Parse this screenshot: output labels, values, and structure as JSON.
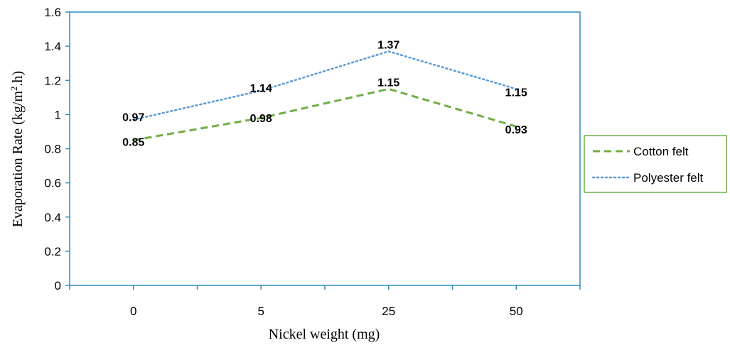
{
  "chart_data": {
    "type": "line",
    "title": "",
    "xlabel": "Nickel weight (mg)",
    "ylabel_main": "Evaporation Rate (kg/m",
    "ylabel_sup": "2",
    "ylabel_tail": ".h)",
    "categories": [
      "0",
      "5",
      "25",
      "50"
    ],
    "ylim": [
      0,
      1.6
    ],
    "yticks": [
      "0",
      "0.2",
      "0.4",
      "0.6",
      "0.8",
      "1",
      "1.2",
      "1.4",
      "1.6"
    ],
    "legend_position": "right",
    "grid": false,
    "series": [
      {
        "name": "Cotton felt",
        "values": [
          0.85,
          0.98,
          1.15,
          0.93
        ],
        "labels": [
          "0.85",
          "0.98",
          "1.15",
          "0.93"
        ],
        "color": "#70AD47",
        "dash": "dashed"
      },
      {
        "name": "Polyester felt",
        "values": [
          0.97,
          1.14,
          1.37,
          1.15
        ],
        "labels": [
          "0.97",
          "1.14",
          "1.37",
          "1.15"
        ],
        "color": "#5B9BD5",
        "dash": "dotted"
      }
    ]
  },
  "colors": {
    "axis": "#2E8BC0",
    "legend_border": "#70AD47"
  }
}
